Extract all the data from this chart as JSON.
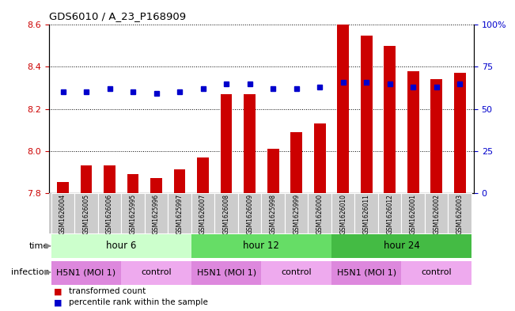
{
  "title": "GDS6010 / A_23_P168909",
  "samples": [
    "GSM1626004",
    "GSM1626005",
    "GSM1626006",
    "GSM1625995",
    "GSM1625996",
    "GSM1625997",
    "GSM1626007",
    "GSM1626008",
    "GSM1626009",
    "GSM1625998",
    "GSM1625999",
    "GSM1626000",
    "GSM1626010",
    "GSM1626011",
    "GSM1626012",
    "GSM1626001",
    "GSM1626002",
    "GSM1626003"
  ],
  "bar_values": [
    7.85,
    7.93,
    7.93,
    7.89,
    7.87,
    7.91,
    7.97,
    8.27,
    8.27,
    8.01,
    8.09,
    8.13,
    8.6,
    8.55,
    8.5,
    8.38,
    8.34,
    8.37
  ],
  "percentile_values": [
    60,
    60,
    62,
    60,
    59,
    60,
    62,
    65,
    65,
    62,
    62,
    63,
    66,
    66,
    65,
    63,
    63,
    65
  ],
  "ylim_left": [
    7.8,
    8.6
  ],
  "ylim_right": [
    0,
    100
  ],
  "yticks_left": [
    7.8,
    8.0,
    8.2,
    8.4,
    8.6
  ],
  "yticks_right": [
    0,
    25,
    50,
    75,
    100
  ],
  "ytick_labels_right": [
    "0",
    "25",
    "50",
    "75",
    "100%"
  ],
  "bar_color": "#cc0000",
  "dot_color": "#0000cc",
  "bar_width": 0.5,
  "dot_size": 5,
  "time_groups": [
    {
      "label": "hour 6",
      "start": 0,
      "end": 5,
      "color": "#ccffcc"
    },
    {
      "label": "hour 12",
      "start": 6,
      "end": 11,
      "color": "#66dd66"
    },
    {
      "label": "hour 24",
      "start": 12,
      "end": 17,
      "color": "#44bb44"
    }
  ],
  "infection_groups": [
    {
      "label": "H5N1 (MOI 1)",
      "start": 0,
      "end": 2,
      "color": "#dd88dd"
    },
    {
      "label": "control",
      "start": 3,
      "end": 5,
      "color": "#eeaaee"
    },
    {
      "label": "H5N1 (MOI 1)",
      "start": 6,
      "end": 8,
      "color": "#dd88dd"
    },
    {
      "label": "control",
      "start": 9,
      "end": 11,
      "color": "#eeaaee"
    },
    {
      "label": "H5N1 (MOI 1)",
      "start": 12,
      "end": 14,
      "color": "#dd88dd"
    },
    {
      "label": "control",
      "start": 15,
      "end": 17,
      "color": "#eeaaee"
    }
  ],
  "legend_items": [
    {
      "label": "transformed count",
      "color": "#cc0000"
    },
    {
      "label": "percentile rank within the sample",
      "color": "#0000cc"
    }
  ],
  "tick_label_color_left": "#cc0000",
  "tick_label_color_right": "#0000cc",
  "xtick_bg_color": "#cccccc",
  "label_time": "time",
  "label_infection": "infection",
  "arrow_color": "#888888"
}
